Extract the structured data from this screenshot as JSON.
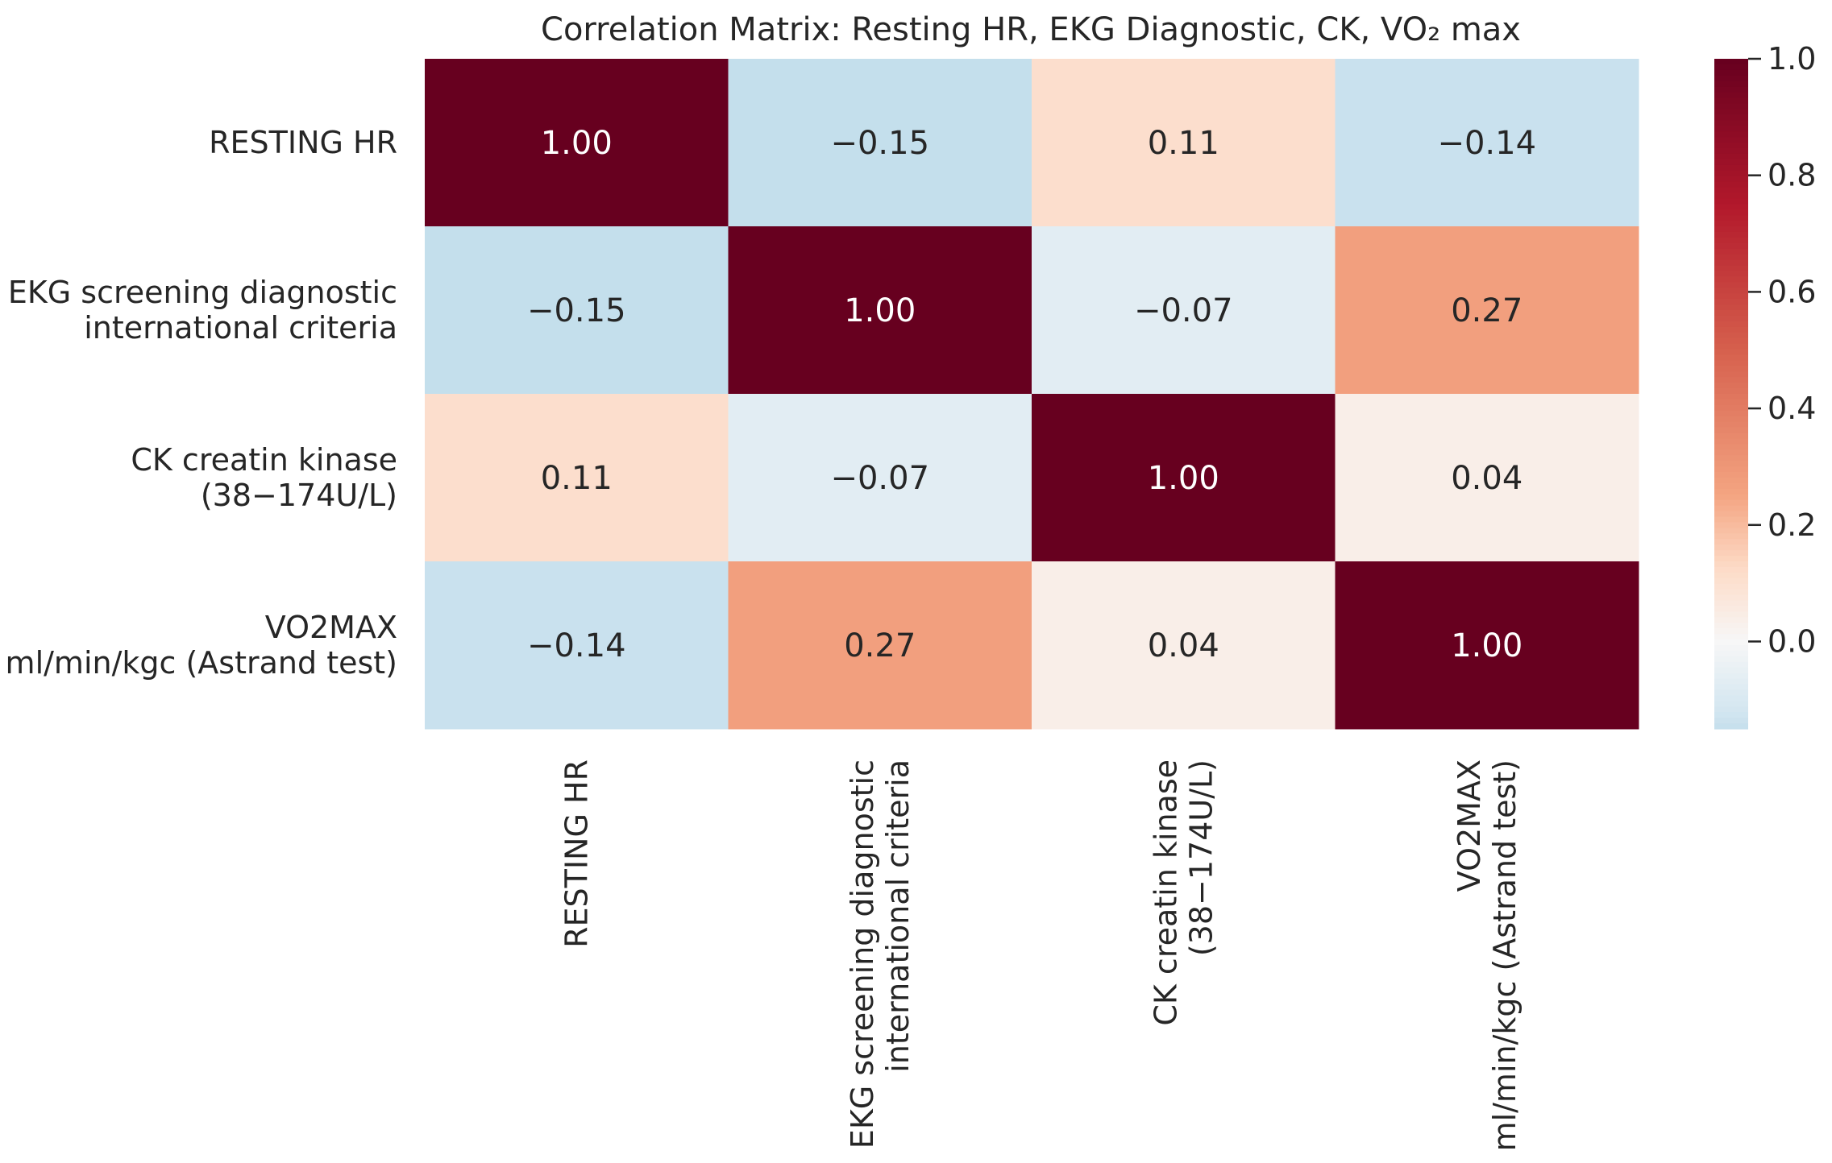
{
  "chart_data": {
    "type": "heatmap",
    "title": "Correlation Matrix: Resting HR, EKG Diagnostic, CK, VO₂ max",
    "xlabel": "",
    "ylabel": "",
    "row_labels": [
      [
        "RESTING HR"
      ],
      [
        "EKG screening diagnostic",
        "international criteria"
      ],
      [
        "CK creatin kinase",
        "(38−174U/L)"
      ],
      [
        "VO2MAX",
        "ml/min/kgc (Astrand test)"
      ]
    ],
    "col_labels": [
      [
        "RESTING HR"
      ],
      [
        "EKG screening diagnostic",
        "international criteria"
      ],
      [
        "CK creatin kinase",
        "(38−174U/L)"
      ],
      [
        "VO2MAX",
        "ml/min/kgc (Astrand test)"
      ]
    ],
    "values": [
      [
        1.0,
        -0.15,
        0.11,
        -0.14
      ],
      [
        -0.15,
        1.0,
        -0.07,
        0.27
      ],
      [
        0.11,
        -0.07,
        1.0,
        0.04
      ],
      [
        -0.14,
        0.27,
        0.04,
        1.0
      ]
    ],
    "cell_labels": [
      [
        "1.00",
        "−0.15",
        "0.11",
        "−0.14"
      ],
      [
        "−0.15",
        "1.00",
        "−0.07",
        "0.27"
      ],
      [
        "0.11",
        "−0.07",
        "1.00",
        "0.04"
      ],
      [
        "−0.14",
        "0.27",
        "0.04",
        "1.00"
      ]
    ],
    "colorbar": {
      "range": [
        -0.15,
        1.0
      ],
      "ticks": [
        0.0,
        0.2,
        0.4,
        0.6,
        0.8,
        1.0
      ],
      "tick_labels": [
        "0.0",
        "0.2",
        "0.4",
        "0.6",
        "0.8",
        "1.0"
      ]
    },
    "colormap": {
      "name": "RdBu_r",
      "center": 0.0,
      "stops": [
        [
          -1.0,
          "#053061"
        ],
        [
          -0.75,
          "#2166ac"
        ],
        [
          -0.5,
          "#4393c3"
        ],
        [
          -0.25,
          "#92c5de"
        ],
        [
          -0.125,
          "#d1e5f0"
        ],
        [
          0.0,
          "#f7f7f7"
        ],
        [
          0.125,
          "#fddbc7"
        ],
        [
          0.25,
          "#f4a582"
        ],
        [
          0.5,
          "#d6604d"
        ],
        [
          0.75,
          "#b2182b"
        ],
        [
          1.0,
          "#67001f"
        ]
      ]
    },
    "text_colors": {
      "dark": "#262626",
      "light": "#ffffff"
    }
  }
}
